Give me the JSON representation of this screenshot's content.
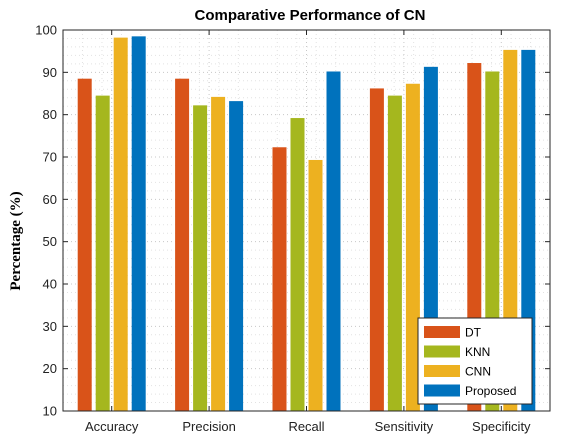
{
  "chart_data": {
    "type": "bar",
    "title": "Comparative Performance of CN",
    "xlabel": "",
    "ylabel": "Percentage (%)",
    "categories": [
      "Accuracy",
      "Precision",
      "Recall",
      "Sensitivity",
      "Specificity"
    ],
    "ylim": [
      10,
      100
    ],
    "yticks": [
      10,
      20,
      30,
      40,
      50,
      60,
      70,
      80,
      90,
      100
    ],
    "grid": "dotted",
    "legend_position": "bottom-right",
    "series": [
      {
        "name": "DT",
        "color": "#D95319",
        "values": [
          88.5,
          88.5,
          72.3,
          86.2,
          92.2
        ]
      },
      {
        "name": "KNN",
        "color": "#A5B71E",
        "values": [
          84.5,
          82.2,
          79.2,
          84.5,
          90.2
        ]
      },
      {
        "name": "CNN",
        "color": "#EDB120",
        "values": [
          98.2,
          84.2,
          69.3,
          87.3,
          95.3
        ]
      },
      {
        "name": "Proposed",
        "color": "#0072BD",
        "values": [
          98.5,
          83.2,
          90.2,
          91.3,
          95.3
        ]
      }
    ]
  }
}
